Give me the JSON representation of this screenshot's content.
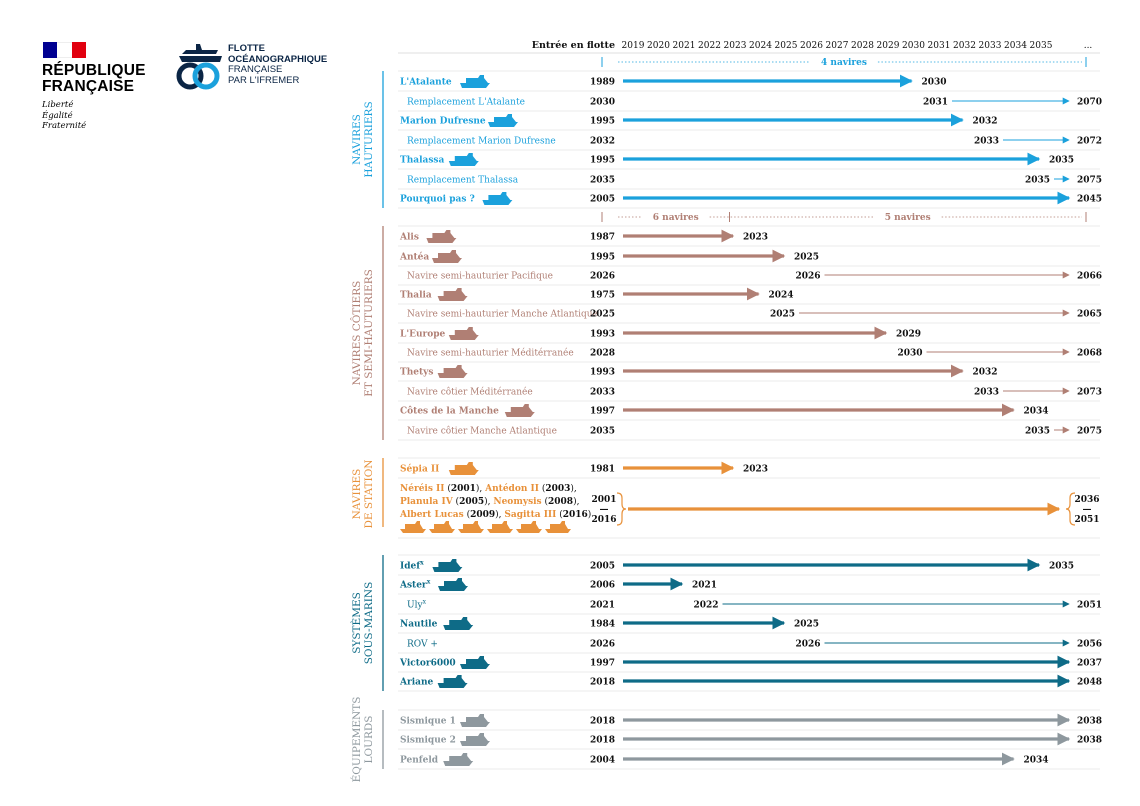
{
  "branding": {
    "republique_title": "RÉPUBLIQUE FRANÇAISE",
    "motto": [
      "Liberté",
      "Égalité",
      "Fraternité"
    ],
    "flotte_lines": [
      "FLOTTE",
      "OCÉANOGRAPHIQUE",
      "FRANÇAISE",
      "PAR L'IFREMER"
    ],
    "colors": {
      "flag_blue": "#000091",
      "flag_red": "#e1000f",
      "navy": "#0b2545"
    }
  },
  "chart_data": {
    "type": "timeline",
    "header_label": "Entrée en flotte",
    "years": [
      "2019",
      "2020",
      "2021",
      "2022",
      "2023",
      "2024",
      "2025",
      "2026",
      "2027",
      "2028",
      "2029",
      "2030",
      "2031",
      "2032",
      "2033",
      "2034",
      "2035"
    ],
    "ellipsis": "...",
    "groups": [
      {
        "title": [
          "NAVIRES",
          "HAUTURIERS"
        ],
        "color": "#1ba1dc",
        "count_labels": [
          {
            "text": "4 navires",
            "from": 2019,
            "to": 2037
          }
        ],
        "rows": [
          {
            "name": "L'Atalante",
            "kind": "main",
            "entry": "1989",
            "end": 2030,
            "end_label": "2030"
          },
          {
            "name": "Remplacement L'Atalante",
            "kind": "replace",
            "entry": "2030",
            "start": 2031,
            "start_label": "2031",
            "end_label": "2070"
          },
          {
            "name": "Marion Dufresne",
            "kind": "main",
            "entry": "1995",
            "end": 2032,
            "end_label": "2032"
          },
          {
            "name": "Remplacement Marion Dufresne",
            "kind": "replace",
            "entry": "2032",
            "start": 2033,
            "start_label": "2033",
            "end_label": "2072"
          },
          {
            "name": "Thalassa",
            "kind": "main",
            "entry": "1995",
            "end": 2035,
            "end_label": "2035"
          },
          {
            "name": "Remplacement Thalassa",
            "kind": "replace",
            "entry": "2035",
            "start": 2035,
            "start_label": "2035",
            "end_label": "2075"
          },
          {
            "name": "Pourquoi pas ?",
            "kind": "main",
            "entry": "2005",
            "end": 2037,
            "end_label": "2045"
          }
        ]
      },
      {
        "title": [
          "NAVIRES CÔTIERS",
          "ET SEMI-HAUTURIERS"
        ],
        "color": "#b07f74",
        "count_labels": [
          {
            "text": "6 navires",
            "from": 2019,
            "to": 2024
          },
          {
            "text": "5 navires",
            "from": 2024,
            "to": 2037
          }
        ],
        "rows": [
          {
            "name": "Alis",
            "kind": "main",
            "entry": "1987",
            "end": 2023,
            "end_label": "2023"
          },
          {
            "name": "Antéa",
            "kind": "main",
            "entry": "1995",
            "end": 2025,
            "end_label": "2025"
          },
          {
            "name": "Navire semi-hauturier Pacifique",
            "kind": "replace",
            "entry": "2026",
            "start": 2026,
            "start_label": "2026",
            "end_label": "2066"
          },
          {
            "name": "Thalia",
            "kind": "main",
            "entry": "1975",
            "end": 2024,
            "end_label": "2024"
          },
          {
            "name": "Navire semi-hauturier Manche Atlantique",
            "kind": "replace",
            "entry": "2025",
            "start": 2025,
            "start_label": "2025",
            "end_label": "2065"
          },
          {
            "name": "L'Europe",
            "kind": "main",
            "entry": "1993",
            "end": 2029,
            "end_label": "2029"
          },
          {
            "name": "Navire semi-hauturier Méditérranée",
            "kind": "replace",
            "entry": "2028",
            "start": 2030,
            "start_label": "2030",
            "end_label": "2068"
          },
          {
            "name": "Thetys",
            "kind": "main",
            "entry": "1993",
            "end": 2032,
            "end_label": "2032"
          },
          {
            "name": "Navire côtier Méditérranée",
            "kind": "replace",
            "entry": "2033",
            "start": 2033,
            "start_label": "2033",
            "end_label": "2073"
          },
          {
            "name": "Côtes de la Manche",
            "kind": "main",
            "entry": "1997",
            "end": 2034,
            "end_label": "2034"
          },
          {
            "name": "Navire côtier Manche Atlantique",
            "kind": "replace",
            "entry": "2035",
            "start": 2035,
            "start_label": "2035",
            "end_label": "2075"
          }
        ]
      },
      {
        "title": [
          "NAVIRES",
          "DE STATION"
        ],
        "color": "#e8913a",
        "rows": [
          {
            "name": "Sépia II",
            "kind": "main",
            "entry": "1981",
            "end": 2023,
            "end_label": "2023"
          }
        ],
        "composite": {
          "lines": [
            [
              {
                "t": "Néréis II",
                "b": 1,
                "o": 1
              },
              {
                "t": " (",
                "b": 0,
                "o": 0
              },
              {
                "t": "2001",
                "b": 1,
                "o": 0
              },
              {
                "t": "), ",
                "b": 0,
                "o": 0
              },
              {
                "t": "Antédon II",
                "b": 1,
                "o": 1
              },
              {
                "t": " (",
                "b": 0,
                "o": 0
              },
              {
                "t": "2003",
                "b": 1,
                "o": 0
              },
              {
                "t": "),",
                "b": 0,
                "o": 0
              }
            ],
            [
              {
                "t": "Planula IV",
                "b": 1,
                "o": 1
              },
              {
                "t": " (",
                "b": 0,
                "o": 0
              },
              {
                "t": "2005",
                "b": 1,
                "o": 0
              },
              {
                "t": "), ",
                "b": 0,
                "o": 0
              },
              {
                "t": "Neomysis",
                "b": 1,
                "o": 1
              },
              {
                "t": " (",
                "b": 0,
                "o": 0
              },
              {
                "t": "2008",
                "b": 1,
                "o": 0
              },
              {
                "t": "),",
                "b": 0,
                "o": 0
              }
            ],
            [
              {
                "t": "Albert Lucas",
                "b": 1,
                "o": 1
              },
              {
                "t": " (",
                "b": 0,
                "o": 0
              },
              {
                "t": "2009",
                "b": 1,
                "o": 0
              },
              {
                "t": "), ",
                "b": 0,
                "o": 0
              },
              {
                "t": "Sagitta III",
                "b": 1,
                "o": 1
              },
              {
                "t": " (",
                "b": 0,
                "o": 0
              },
              {
                "t": "2016",
                "b": 1,
                "o": 0
              },
              {
                "t": ")",
                "b": 0,
                "o": 0
              }
            ]
          ],
          "entry_range": [
            "2001",
            "—",
            "2016"
          ],
          "end_range": [
            "2036",
            "—",
            "2051"
          ]
        }
      },
      {
        "title": [
          "SYSTÈMES",
          "SOUS-MARINS"
        ],
        "color": "#0e6b87",
        "rows": [
          {
            "name": "Idef",
            "sup": "x",
            "kind": "main",
            "entry": "2005",
            "end": 2035,
            "end_label": "2035"
          },
          {
            "name": "Aster",
            "sup": "x",
            "kind": "main",
            "entry": "2006",
            "end": 2021,
            "end_label": "2021"
          },
          {
            "name": "Uly",
            "sup": "x",
            "kind": "replace",
            "entry": "2021",
            "start": 2022,
            "start_label": "2022",
            "end_label": "2051"
          },
          {
            "name": "Nautile",
            "kind": "main",
            "entry": "1984",
            "end": 2025,
            "end_label": "2025"
          },
          {
            "name": "ROV +",
            "kind": "replace",
            "entry": "2026",
            "start": 2026,
            "start_label": "2026",
            "end_label": "2056"
          },
          {
            "name": "Victor6000",
            "kind": "main",
            "entry": "1997",
            "end": 2037,
            "end_label": "2037"
          },
          {
            "name": "Ariane",
            "kind": "main",
            "entry": "2018",
            "end": 2037,
            "end_label": "2048"
          }
        ]
      },
      {
        "title": [
          "ÉQUIPEMENTS",
          "LOURDS"
        ],
        "color": "#8e989e",
        "rows": [
          {
            "name": "Sismique 1",
            "kind": "main",
            "entry": "2018",
            "end": 2037,
            "end_label": "2038"
          },
          {
            "name": "Sismique 2",
            "kind": "main",
            "entry": "2018",
            "end": 2037,
            "end_label": "2038"
          },
          {
            "name": "Penfeld",
            "kind": "main",
            "entry": "2004",
            "end": 2034,
            "end_label": "2034"
          }
        ]
      }
    ]
  }
}
